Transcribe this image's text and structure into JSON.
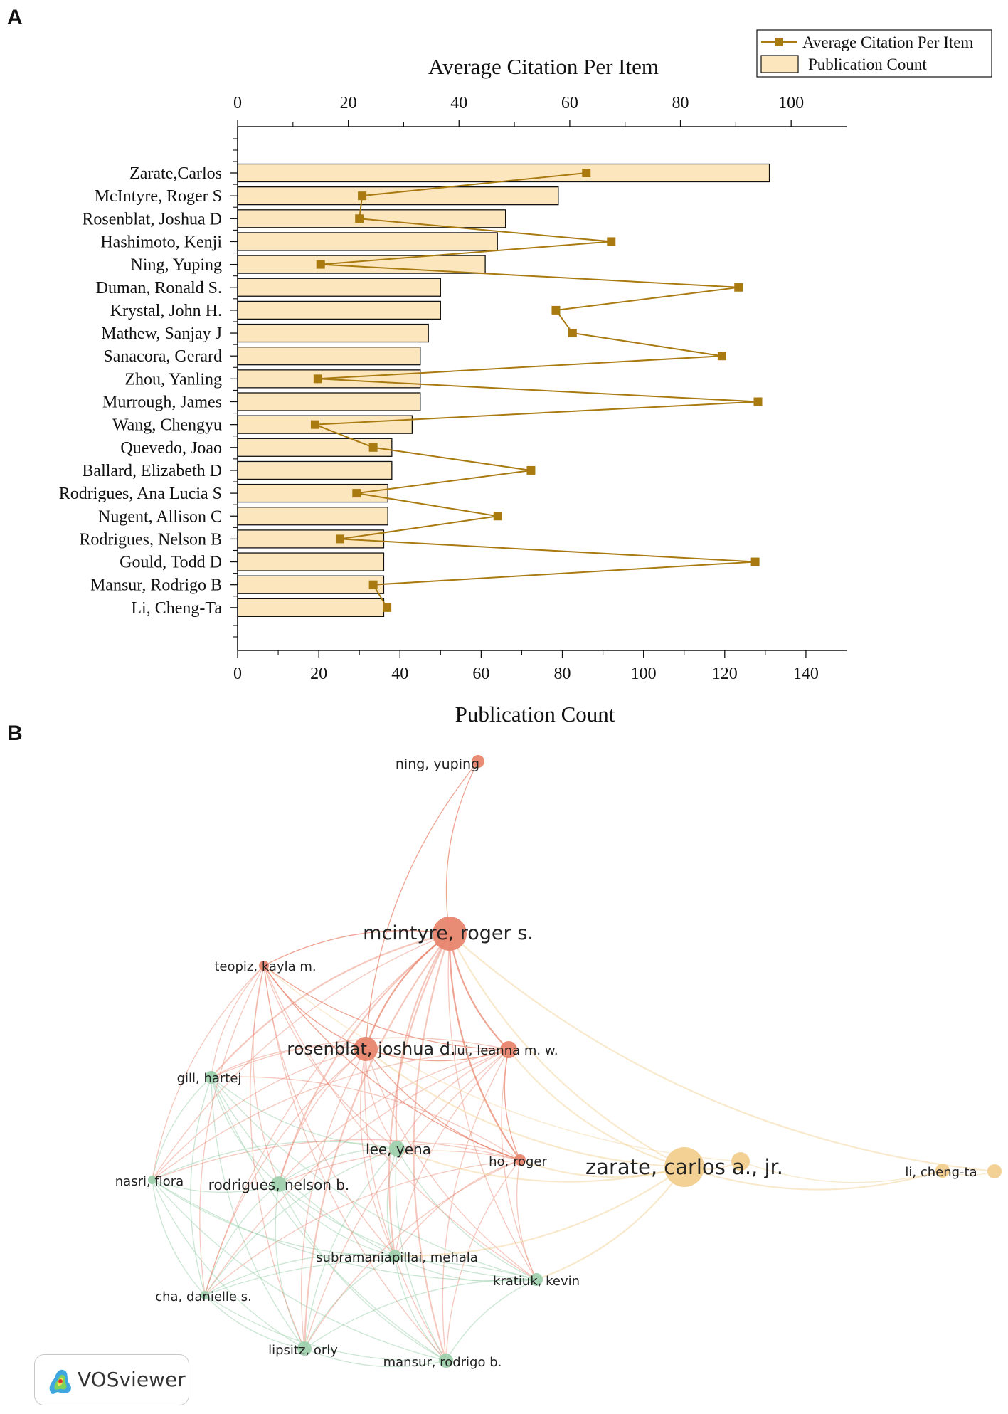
{
  "panels": {
    "a_label": "A",
    "b_label": "B"
  },
  "chart_data": [
    {
      "type": "bar",
      "orientation": "horizontal",
      "categories": [
        "Zarate,Carlos",
        "McIntyre, Roger S",
        "Rosenblat, Joshua D",
        "Hashimoto, Kenji",
        "Ning, Yuping",
        "Duman, Ronald S.",
        "Krystal, John H.",
        "Mathew, Sanjay J",
        "Sanacora, Gerard",
        "Zhou, Yanling",
        "Murrough, James",
        "Wang, Chengyu",
        "Quevedo, Joao",
        "Ballard, Elizabeth D",
        "Rodrigues, Ana Lucia S",
        "Nugent, Allison C",
        "Rodrigues, Nelson B",
        "Gould, Todd D",
        "Mansur, Rodrigo B",
        "Li, Cheng-Ta"
      ],
      "series": [
        {
          "name": "Publication Count",
          "kind": "bar",
          "axis": "bottom",
          "color": "#FBE6BE",
          "values": [
            131,
            79,
            66,
            64,
            61,
            50,
            50,
            47,
            45,
            45,
            45,
            43,
            38,
            38,
            37,
            37,
            36,
            36,
            36,
            36
          ]
        },
        {
          "name": "Average Citation Per Item",
          "kind": "line",
          "axis": "top",
          "color": "#A87A10",
          "values": [
            63,
            22.5,
            22,
            67.5,
            15,
            90.5,
            57.5,
            60.5,
            87.5,
            14.5,
            94,
            14,
            24.5,
            53,
            21.5,
            47,
            18.5,
            93.5,
            24.5,
            27
          ]
        }
      ],
      "title": "Average Citation Per Item",
      "xlabel": "Publication Count",
      "xlim_bottom": [
        0,
        150
      ],
      "xticks_bottom": [
        0,
        20,
        40,
        60,
        80,
        100,
        120,
        140
      ],
      "xlim_top": [
        0,
        110
      ],
      "xticks_top": [
        0,
        20,
        40,
        60,
        80,
        100
      ],
      "legend": {
        "position": "top-right",
        "entries": [
          "Average Citation Per Item",
          "Publication Count"
        ]
      }
    },
    {
      "type": "network",
      "tool": "VOSviewer",
      "clusters": {
        "red": "#E8866F",
        "green": "#9FD1AE",
        "yellow": "#F2CF8F"
      },
      "nodes": [
        {
          "id": "ning",
          "label": "ning, yuping",
          "cluster": "red",
          "weight": 1
        },
        {
          "id": "mcintyre",
          "label": "mcintyre, roger s.",
          "cluster": "red",
          "weight": 5
        },
        {
          "id": "teopiz",
          "label": "teopiz, kayla m.",
          "cluster": "red",
          "weight": 1
        },
        {
          "id": "rosenblat",
          "label": "rosenblat, joshua d.",
          "cluster": "red",
          "weight": 4
        },
        {
          "id": "lui",
          "label": "lui, leanna m. w.",
          "cluster": "red",
          "weight": 2
        },
        {
          "id": "ho",
          "label": "ho, roger",
          "cluster": "red",
          "weight": 1.5
        },
        {
          "id": "gill",
          "label": "gill, hartej",
          "cluster": "green",
          "weight": 1.5
        },
        {
          "id": "lee",
          "label": "lee, yena",
          "cluster": "green",
          "weight": 2
        },
        {
          "id": "nasri",
          "label": "nasri, flora",
          "cluster": "green",
          "weight": 1
        },
        {
          "id": "rodrigues",
          "label": "rodrigues, nelson b.",
          "cluster": "green",
          "weight": 2
        },
        {
          "id": "subramaniapillai",
          "label": "subramaniapillai, mehala",
          "cluster": "green",
          "weight": 1.5
        },
        {
          "id": "kratiuk",
          "label": "kratiuk, kevin",
          "cluster": "green",
          "weight": 1
        },
        {
          "id": "cha",
          "label": "cha, danielle s.",
          "cluster": "green",
          "weight": 1
        },
        {
          "id": "lipsitz",
          "label": "lipsitz, orly",
          "cluster": "green",
          "weight": 1.5
        },
        {
          "id": "mansur",
          "label": "mansur, rodrigo b.",
          "cluster": "green",
          "weight": 1.5
        },
        {
          "id": "zarate",
          "label": "zarate, carlos a., jr.",
          "cluster": "yellow",
          "weight": 7
        },
        {
          "id": "zarate2",
          "label": "",
          "cluster": "yellow",
          "weight": 2.5
        },
        {
          "id": "li",
          "label": "li, cheng-ta",
          "cluster": "yellow",
          "weight": 1.5
        },
        {
          "id": "li2",
          "label": "",
          "cluster": "yellow",
          "weight": 1.5
        }
      ],
      "logo_text": "VOSviewer"
    }
  ]
}
